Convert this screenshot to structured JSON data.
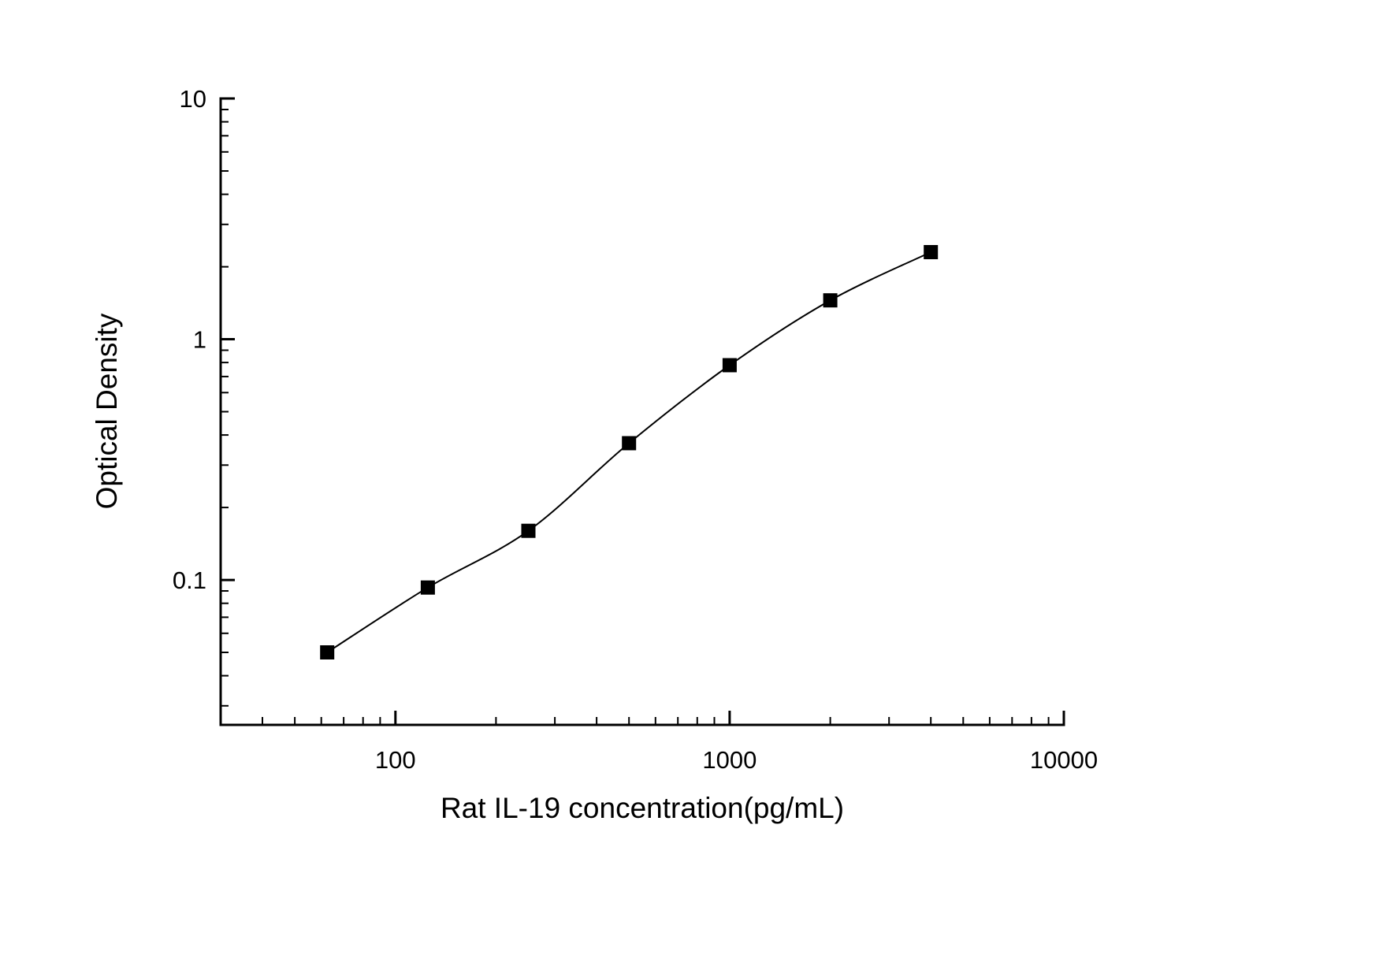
{
  "page": {
    "background": "#ffffff"
  },
  "chart_data": {
    "type": "scatter",
    "title": "",
    "xlabel": "Rat IL-19 concentration(pg/mL)",
    "ylabel": "Optical Density",
    "x_scale": "log",
    "y_scale": "log",
    "xlim": [
      30,
      10000
    ],
    "ylim": [
      0.025,
      10
    ],
    "x_ticks": [
      100,
      1000,
      10000
    ],
    "x_tick_labels": [
      "100",
      "1000",
      "10000"
    ],
    "y_ticks": [
      0.1,
      1,
      10
    ],
    "y_tick_labels": [
      "0.1",
      "1",
      "10"
    ],
    "grid": false,
    "legend": false,
    "colors": {
      "axis": "#000000",
      "curve": "#000000",
      "marker": "#000000",
      "background": "#ffffff"
    },
    "series": [
      {
        "name": "Rat IL-19 standard curve",
        "marker": "square",
        "marker_color": "#000000",
        "line_color": "#000000",
        "x": [
          62.5,
          125,
          250,
          500,
          1000,
          2000,
          4000
        ],
        "y": [
          0.05,
          0.093,
          0.16,
          0.37,
          0.78,
          1.45,
          2.3
        ]
      }
    ]
  }
}
